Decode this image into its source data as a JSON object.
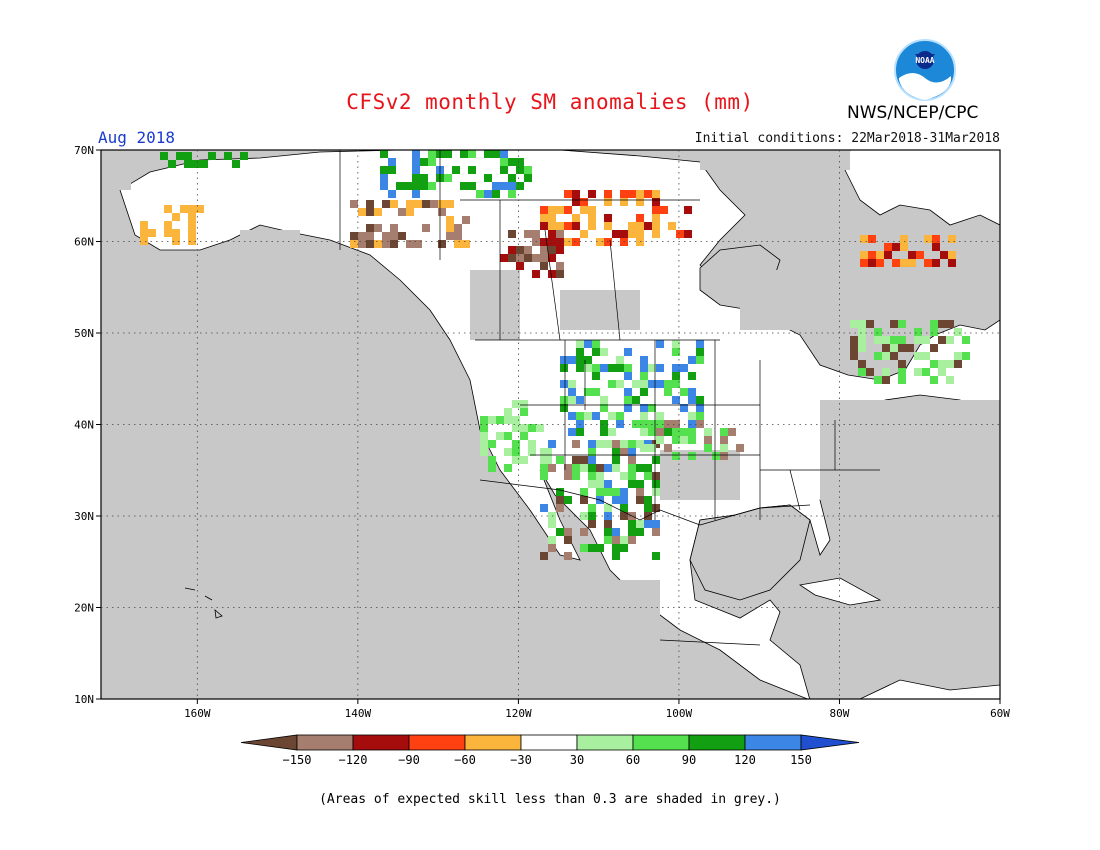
{
  "title": "CFSv2 monthly SM anomalies (mm)",
  "valid_month": "Aug 2018",
  "initial_conditions": "Initial conditions: 22Mar2018-31Mar2018",
  "agency": "NWS/NCEP/CPC",
  "logo_text": "NOAA",
  "footnote": "(Areas of expected skill less than 0.3 are shaded in grey.)",
  "map": {
    "lon_range": [
      -172,
      -60
    ],
    "lat_range": [
      10,
      70
    ],
    "lat_labels": [
      "10N",
      "20N",
      "30N",
      "40N",
      "50N",
      "60N",
      "70N"
    ],
    "lon_labels": [
      "160W",
      "140W",
      "120W",
      "100W",
      "80W",
      "60W"
    ],
    "background": "#c8c8c8"
  },
  "legend": {
    "labels": [
      "−150",
      "−120",
      "−90",
      "−60",
      "−30",
      "30",
      "60",
      "90",
      "120",
      "150"
    ],
    "colors": [
      "#6b4632",
      "#a67e70",
      "#a50d0d",
      "#ff4010",
      "#fbb43c",
      "#ffffff",
      "#a8f0a0",
      "#55e050",
      "#12a012",
      "#3c86e6",
      "#2050d0"
    ]
  }
}
